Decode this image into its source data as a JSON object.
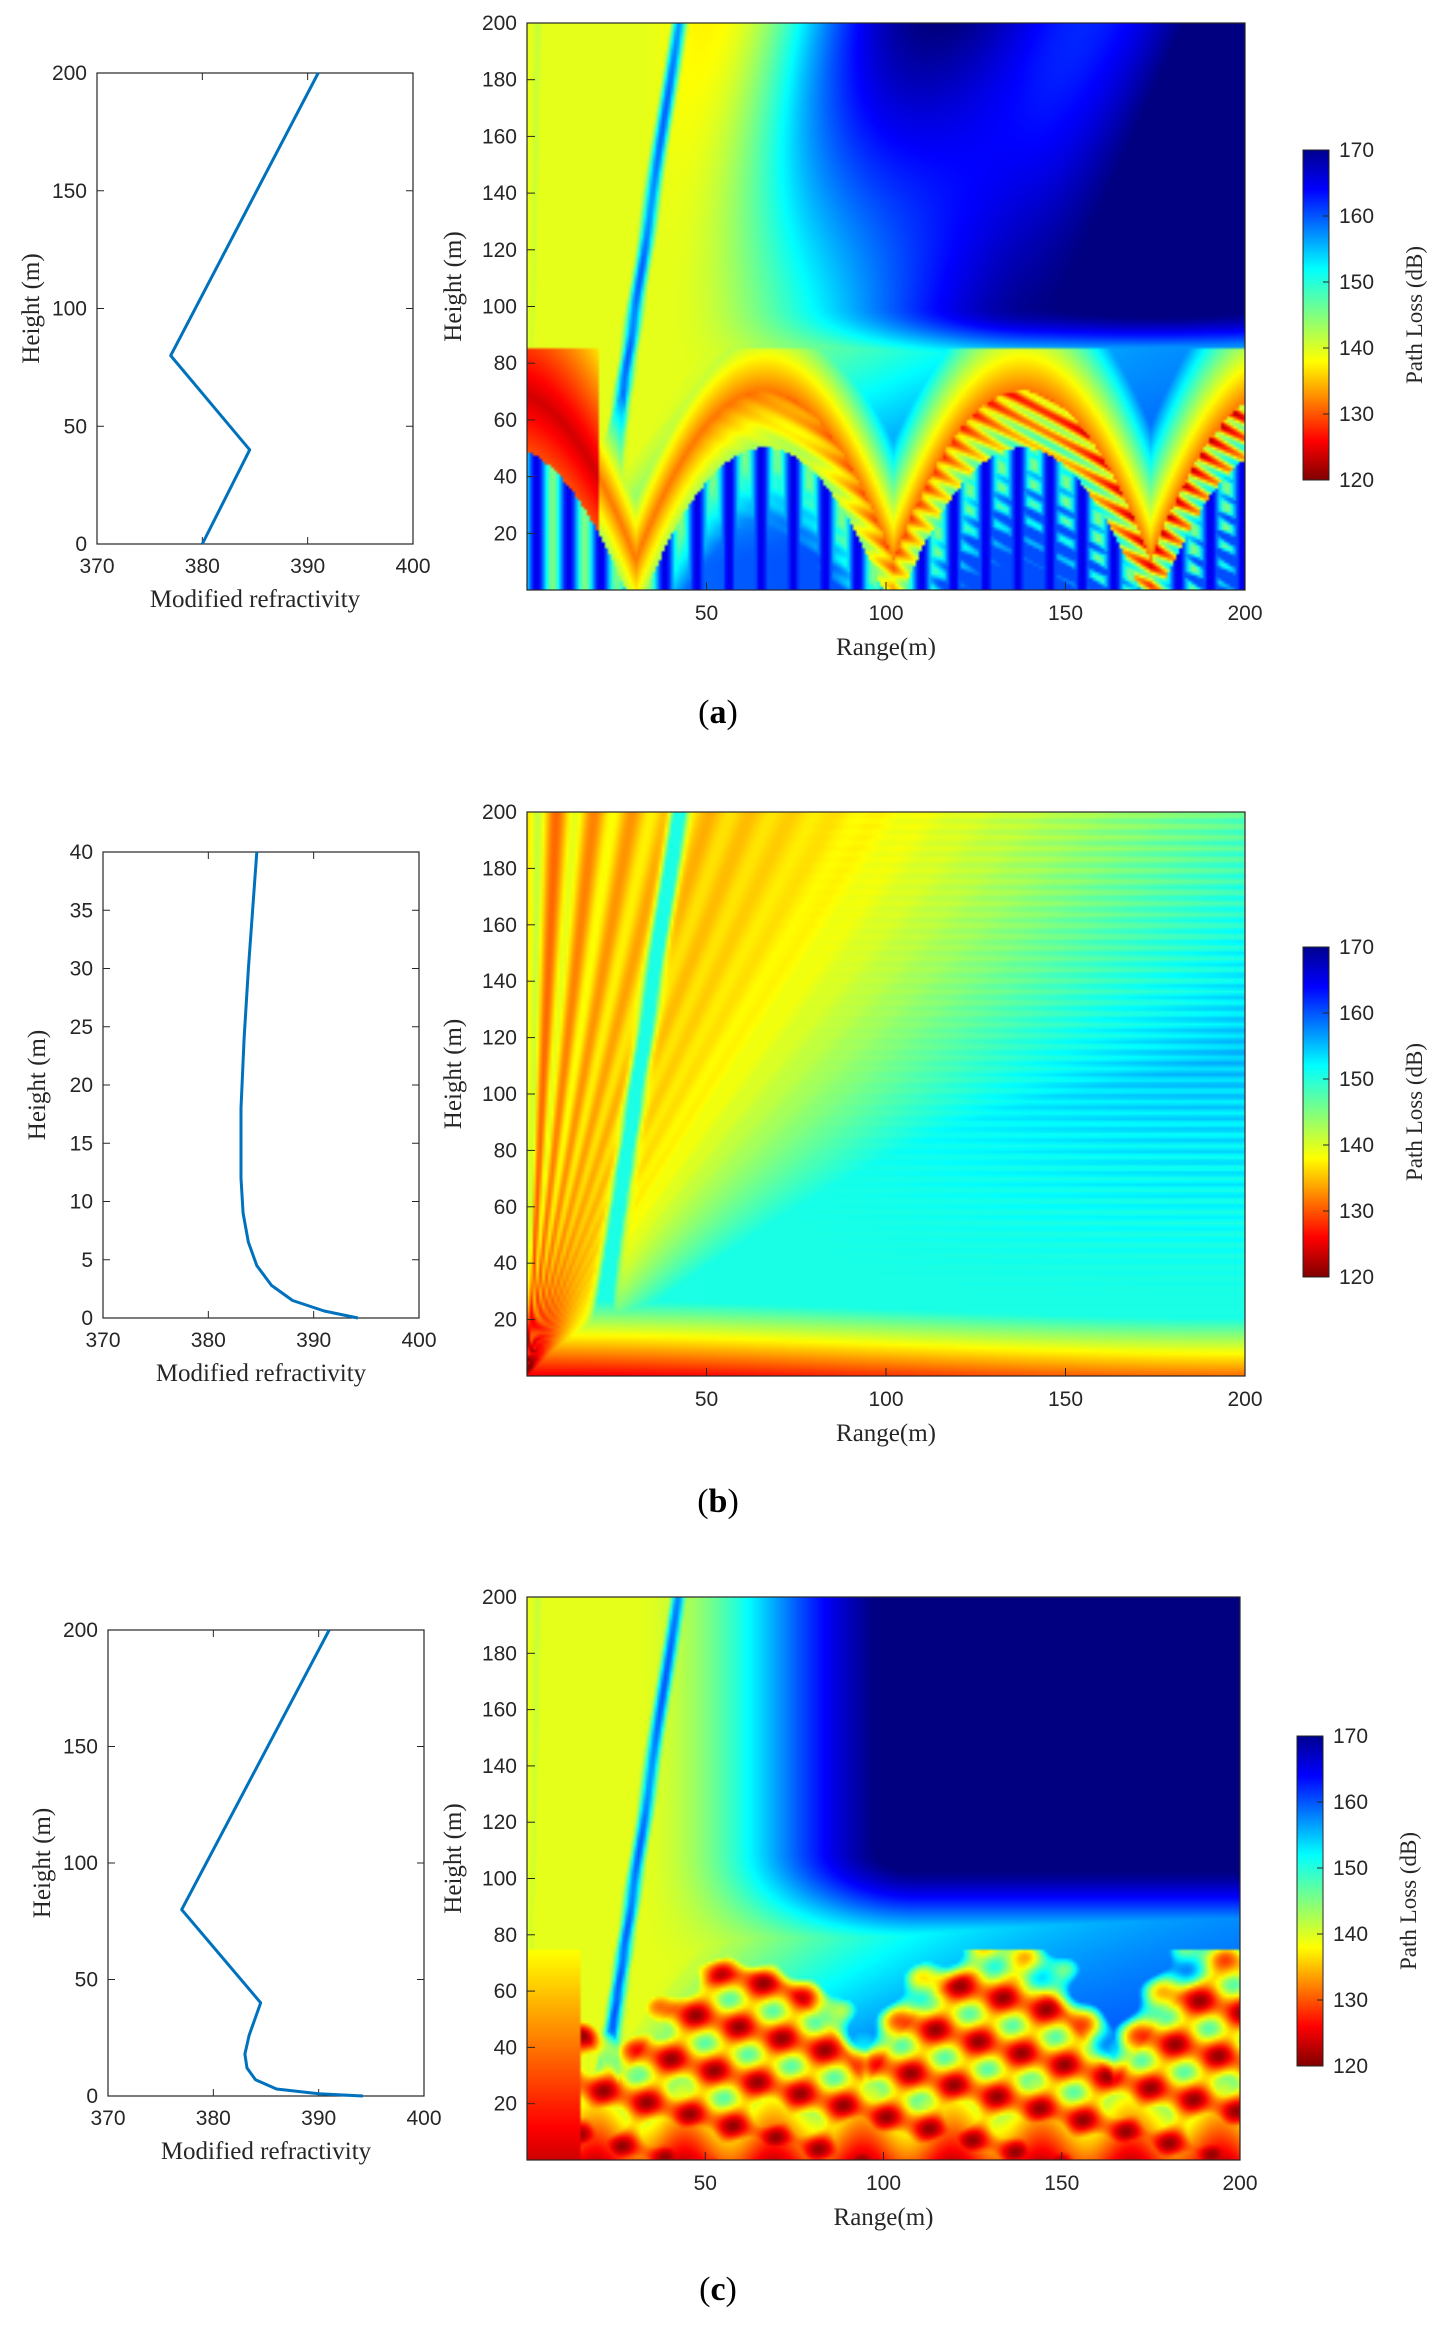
{
  "chart_data": [
    {
      "panel": "a",
      "caption_letter": "a",
      "profile": {
        "type": "line",
        "xlabel": "Modified refractivity",
        "ylabel": "Height (m)",
        "xlim": [
          370,
          400
        ],
        "ylim": [
          0,
          200
        ],
        "xticks": [
          "370",
          "380",
          "390",
          "400"
        ],
        "yticks": [
          "0",
          "50",
          "100",
          "150",
          "200"
        ],
        "series": [
          {
            "name": "profile",
            "x": [
              380,
              384.5,
              377,
              391
            ],
            "y": [
              0,
              40,
              80,
              200
            ]
          }
        ]
      },
      "heatmap": {
        "type": "heatmap",
        "xlabel": "Range(m)",
        "ylabel": "Height (m)",
        "xlim": [
          0,
          200
        ],
        "ylim": [
          0,
          200
        ],
        "xticks": [
          "50",
          "100",
          "150",
          "200"
        ],
        "yticks": [
          "20",
          "40",
          "60",
          "80",
          "100",
          "120",
          "140",
          "160",
          "180",
          "200"
        ],
        "pattern": "duct_strong",
        "colorbar": {
          "label": "Path Loss (dB)",
          "min": 120,
          "max": 170,
          "ticks": [
            "120",
            "130",
            "140",
            "150",
            "160",
            "170"
          ]
        }
      }
    },
    {
      "panel": "b",
      "caption_letter": "b",
      "profile": {
        "type": "line",
        "xlabel": "Modified refractivity",
        "ylabel": "Height (m)",
        "xlim": [
          370,
          400
        ],
        "ylim": [
          0,
          40
        ],
        "xticks": [
          "370",
          "380",
          "390",
          "400"
        ],
        "yticks": [
          "0",
          "5",
          "10",
          "15",
          "20",
          "25",
          "30",
          "35",
          "40"
        ],
        "series": [
          {
            "name": "profile",
            "x": [
              394.2,
              391,
              388,
              386,
              384.6,
              383.8,
              383.3,
              383.1,
              383.1,
              383.4,
              383.8,
              384.2,
              384.6
            ],
            "y": [
              0,
              0.6,
              1.5,
              2.8,
              4.5,
              6.5,
              9,
              12,
              18,
              24,
              30,
              35,
              40
            ]
          }
        ]
      },
      "heatmap": {
        "type": "heatmap",
        "xlabel": "Range(m)",
        "ylabel": "Height (m)",
        "xlim": [
          0,
          200
        ],
        "ylim": [
          0,
          200
        ],
        "xticks": [
          "50",
          "100",
          "150",
          "200"
        ],
        "yticks": [
          "20",
          "40",
          "60",
          "80",
          "100",
          "120",
          "140",
          "160",
          "180",
          "200"
        ],
        "pattern": "evaporation",
        "colorbar": {
          "label": "Path Loss (dB)",
          "min": 120,
          "max": 170,
          "ticks": [
            "120",
            "130",
            "140",
            "150",
            "160",
            "170"
          ]
        }
      }
    },
    {
      "panel": "c",
      "caption_letter": "c",
      "profile": {
        "type": "line",
        "xlabel": "Modified refractivity",
        "ylabel": "Height (m)",
        "xlim": [
          370,
          400
        ],
        "ylim": [
          0,
          200
        ],
        "xticks": [
          "370",
          "380",
          "390",
          "400"
        ],
        "yticks": [
          "0",
          "50",
          "100",
          "150",
          "200"
        ],
        "series": [
          {
            "name": "profile",
            "x": [
              394.2,
              390,
              386,
              384,
              383.2,
              383,
              383.4,
              384.5,
              377,
              391
            ],
            "y": [
              0,
              1,
              3,
              7,
              12,
              18,
              26,
              40,
              80,
              200
            ]
          }
        ]
      },
      "heatmap": {
        "type": "heatmap",
        "xlabel": "Range(m)",
        "ylabel": "Height (m)",
        "xlim": [
          0,
          200
        ],
        "ylim": [
          0,
          200
        ],
        "xticks": [
          "50",
          "100",
          "150",
          "200"
        ],
        "yticks": [
          "20",
          "40",
          "60",
          "80",
          "100",
          "120",
          "140",
          "160",
          "180",
          "200"
        ],
        "pattern": "combined",
        "colorbar": {
          "label": "Path Loss (dB)",
          "min": 120,
          "max": 170,
          "ticks": [
            "120",
            "130",
            "140",
            "150",
            "160",
            "170"
          ]
        }
      }
    }
  ]
}
